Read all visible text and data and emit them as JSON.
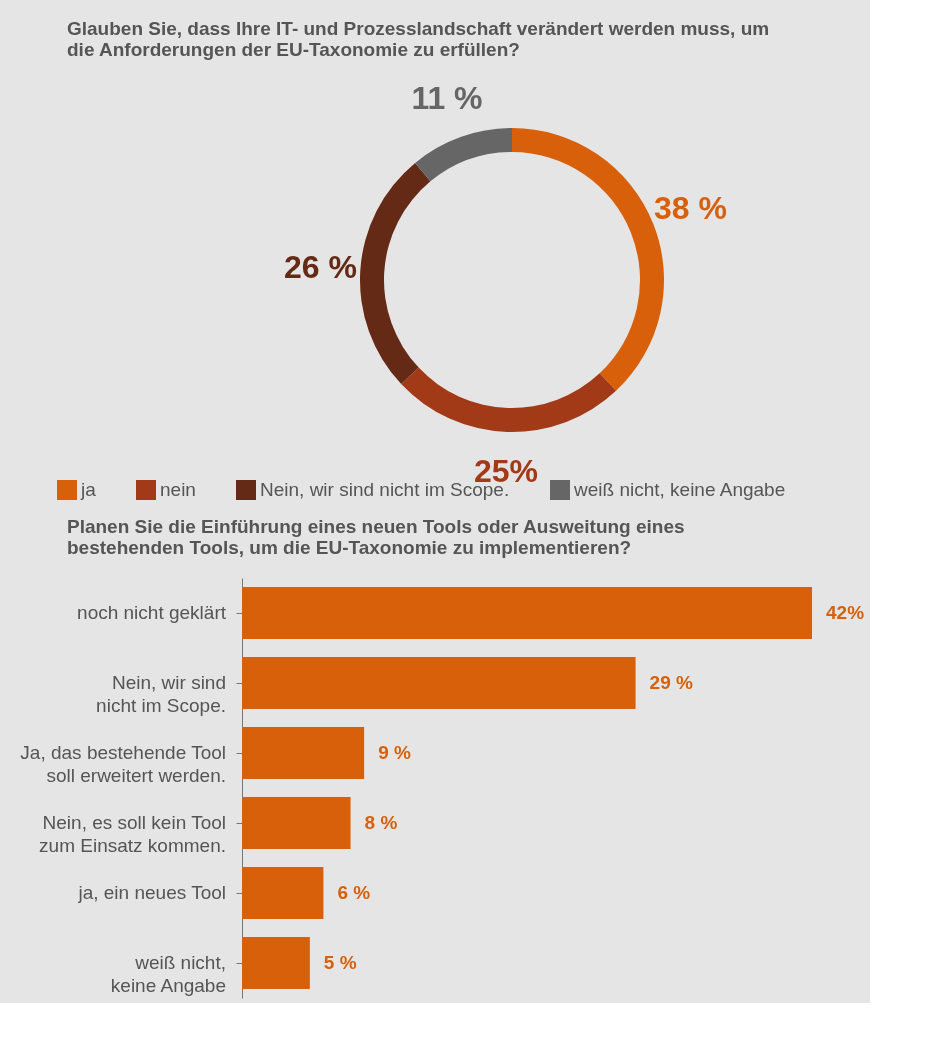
{
  "chart_data": [
    {
      "type": "donut",
      "title": "Glauben Sie, dass Ihre IT- und Prozesslandschaft verändert werden muss, um die Anforderungen der EU-Taxonomie zu erfüllen?",
      "categories": [
        "ja",
        "nein",
        "Nein, wir sind nicht im Scope.",
        "weiß nicht, keine Angabe"
      ],
      "values": [
        38,
        25,
        26,
        11
      ],
      "colors": [
        "#d9600b",
        "#a33a17",
        "#642a15",
        "#666666"
      ],
      "value_labels": [
        "38 %",
        "25%",
        "26 %",
        "11 %"
      ],
      "legend": "bottom"
    },
    {
      "type": "bar",
      "orientation": "horizontal",
      "title": "Planen Sie die Einführung eines neuen Tools oder Ausweitung eines bestehenden Tools, um die EU-Taxonomie zu implementieren?",
      "categories": [
        "noch nicht geklärt",
        "Nein, wir sind nicht im Scope.",
        "Ja, das bestehende Tool soll erweitert werden.",
        "Nein, es soll kein Tool zum Einsatz kommen.",
        "ja, ein neues Tool",
        "weiß nicht, keine Angabe"
      ],
      "values": [
        42,
        29,
        9,
        8,
        6,
        5
      ],
      "color": "#d9600b",
      "value_labels": [
        "42%",
        "29 %",
        "9 %",
        "8 %",
        "6 %",
        "5 %"
      ]
    }
  ]
}
